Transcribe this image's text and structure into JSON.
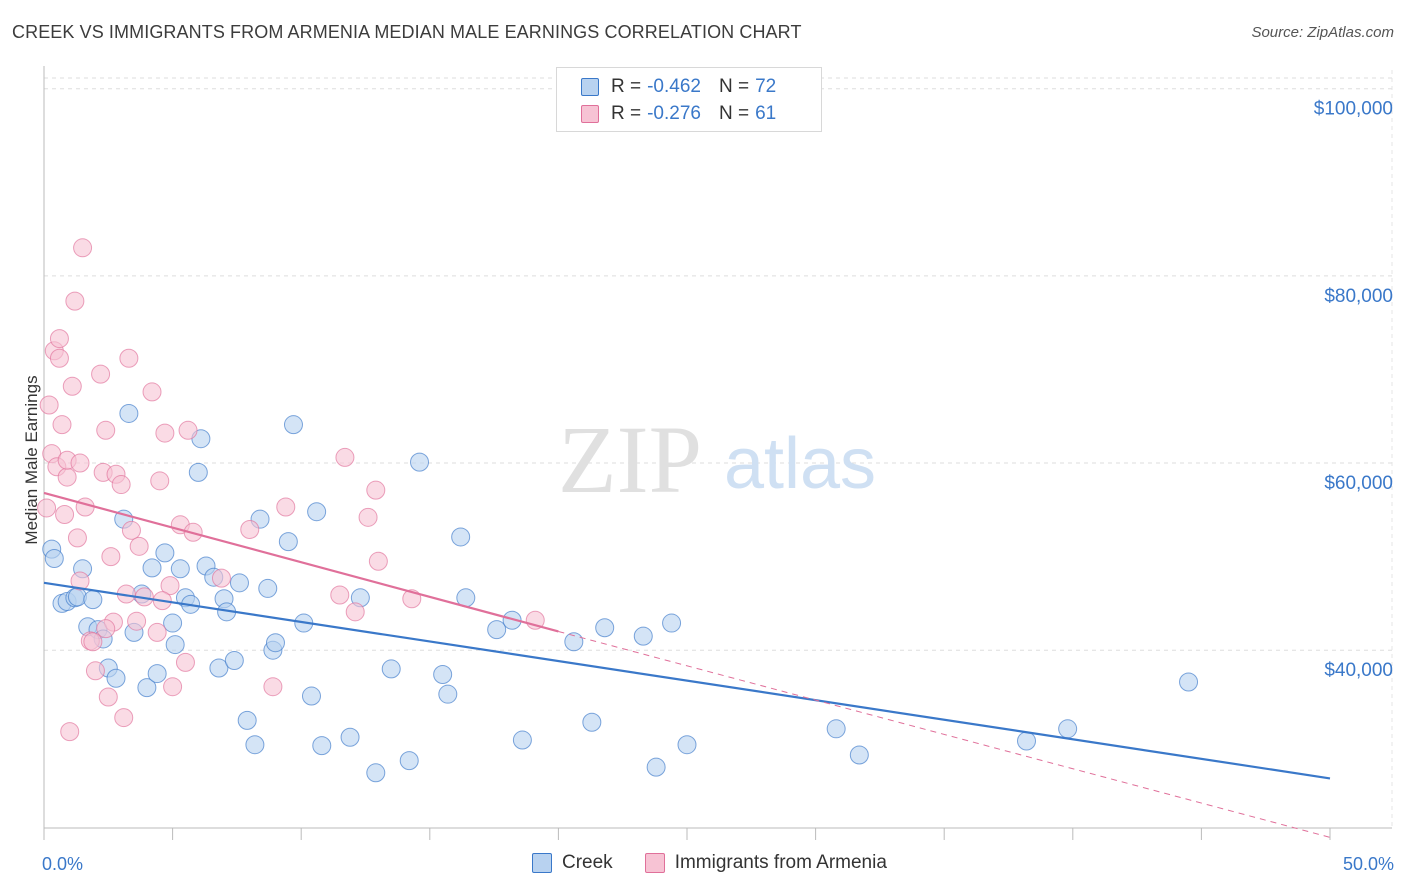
{
  "header": {
    "title": "CREEK VS IMMIGRANTS FROM ARMENIA MEDIAN MALE EARNINGS CORRELATION CHART",
    "source": "Source: ZipAtlas.com"
  },
  "watermark": {
    "zip": "ZIP",
    "atlas": "atlas"
  },
  "legend": {
    "rows": [
      {
        "r_label": "R =",
        "r_value": "-0.462",
        "n_label": "N =",
        "n_value": "72"
      },
      {
        "r_label": "R =",
        "r_value": "-0.276",
        "n_label": "N =",
        "n_value": "61"
      }
    ]
  },
  "colors": {
    "creek": "#3a78c9",
    "creek_fill": "#b8d2f0",
    "armenia": "#e0709a",
    "armenia_fill": "#f7c3d4",
    "axis_text": "#3a78c9",
    "grid": "#dddddd"
  },
  "chart_data": {
    "type": "scatter",
    "ylabel": "Median Male Earnings",
    "x_tick_labels": [
      "0.0%",
      "50.0%"
    ],
    "y_tick_labels": [
      "$40,000",
      "$60,000",
      "$80,000",
      "$100,000"
    ],
    "y_ticks": [
      40000,
      60000,
      80000,
      100000
    ],
    "xlim": [
      0,
      50
    ],
    "ylim": [
      21000,
      102000
    ],
    "series": [
      {
        "name": "Creek",
        "color": "#3a78c9",
        "trend": {
          "x": [
            0,
            50
          ],
          "y": [
            47200,
            26300
          ]
        },
        "points": [
          [
            0.3,
            50800
          ],
          [
            0.4,
            49800
          ],
          [
            0.7,
            45000
          ],
          [
            0.9,
            45200
          ],
          [
            1.2,
            45600
          ],
          [
            1.3,
            45700
          ],
          [
            1.5,
            48700
          ],
          [
            1.7,
            42500
          ],
          [
            1.9,
            45400
          ],
          [
            2.1,
            42200
          ],
          [
            2.3,
            41200
          ],
          [
            2.5,
            38100
          ],
          [
            2.8,
            37000
          ],
          [
            3.1,
            54000
          ],
          [
            3.3,
            65300
          ],
          [
            3.5,
            41900
          ],
          [
            3.8,
            46000
          ],
          [
            4.0,
            36000
          ],
          [
            4.2,
            48800
          ],
          [
            4.4,
            37500
          ],
          [
            4.7,
            50400
          ],
          [
            5.0,
            42900
          ],
          [
            5.1,
            40600
          ],
          [
            5.3,
            48700
          ],
          [
            5.5,
            45600
          ],
          [
            5.7,
            44900
          ],
          [
            6.0,
            59000
          ],
          [
            6.1,
            62600
          ],
          [
            6.3,
            49000
          ],
          [
            6.6,
            47800
          ],
          [
            6.8,
            38100
          ],
          [
            7.0,
            45500
          ],
          [
            7.1,
            44100
          ],
          [
            7.4,
            38900
          ],
          [
            7.6,
            47200
          ],
          [
            7.9,
            32500
          ],
          [
            8.2,
            29900
          ],
          [
            8.4,
            54000
          ],
          [
            8.7,
            46600
          ],
          [
            8.9,
            40000
          ],
          [
            9.0,
            40800
          ],
          [
            9.5,
            51600
          ],
          [
            9.7,
            64100
          ],
          [
            10.1,
            42900
          ],
          [
            10.4,
            35100
          ],
          [
            10.6,
            54800
          ],
          [
            10.8,
            29800
          ],
          [
            11.9,
            30700
          ],
          [
            12.3,
            45600
          ],
          [
            12.9,
            26900
          ],
          [
            13.5,
            38000
          ],
          [
            14.2,
            28200
          ],
          [
            14.6,
            60100
          ],
          [
            15.5,
            37400
          ],
          [
            15.7,
            35300
          ],
          [
            16.2,
            52100
          ],
          [
            16.4,
            45600
          ],
          [
            17.6,
            42200
          ],
          [
            18.2,
            43200
          ],
          [
            18.6,
            30400
          ],
          [
            20.6,
            40900
          ],
          [
            21.3,
            32300
          ],
          [
            21.8,
            42400
          ],
          [
            23.3,
            41500
          ],
          [
            23.8,
            27500
          ],
          [
            24.4,
            42900
          ],
          [
            25.0,
            29900
          ],
          [
            30.8,
            31600
          ],
          [
            31.7,
            28800
          ],
          [
            38.2,
            30300
          ],
          [
            39.8,
            31600
          ],
          [
            44.5,
            36600
          ]
        ]
      },
      {
        "name": "Immigrants from Armenia",
        "color": "#e0709a",
        "trend": {
          "x": [
            0,
            20
          ],
          "y": [
            56800,
            42000
          ]
        },
        "trend_dashed": {
          "x": [
            20,
            50
          ],
          "y": [
            42000,
            20000
          ]
        },
        "points": [
          [
            0.1,
            55200
          ],
          [
            0.2,
            66200
          ],
          [
            0.3,
            61000
          ],
          [
            0.4,
            72000
          ],
          [
            0.5,
            59600
          ],
          [
            0.6,
            73300
          ],
          [
            0.7,
            64100
          ],
          [
            0.8,
            54500
          ],
          [
            0.9,
            58500
          ],
          [
            1.0,
            31300
          ],
          [
            1.1,
            68200
          ],
          [
            1.2,
            77300
          ],
          [
            1.3,
            52000
          ],
          [
            1.4,
            47400
          ],
          [
            1.5,
            83000
          ],
          [
            1.6,
            55300
          ],
          [
            1.8,
            41000
          ],
          [
            2.0,
            37800
          ],
          [
            2.2,
            69500
          ],
          [
            2.3,
            59000
          ],
          [
            2.4,
            63500
          ],
          [
            2.5,
            35000
          ],
          [
            2.6,
            50000
          ],
          [
            2.7,
            43000
          ],
          [
            2.8,
            58800
          ],
          [
            3.0,
            57700
          ],
          [
            3.1,
            32800
          ],
          [
            3.3,
            71200
          ],
          [
            3.4,
            52800
          ],
          [
            3.6,
            43100
          ],
          [
            3.7,
            51100
          ],
          [
            3.9,
            45700
          ],
          [
            4.2,
            67600
          ],
          [
            4.4,
            41900
          ],
          [
            4.5,
            58100
          ],
          [
            4.7,
            63200
          ],
          [
            4.9,
            46900
          ],
          [
            5.0,
            36100
          ],
          [
            5.3,
            53400
          ],
          [
            5.5,
            38700
          ],
          [
            5.6,
            63500
          ],
          [
            5.8,
            52600
          ],
          [
            6.9,
            47700
          ],
          [
            8.0,
            52900
          ],
          [
            8.9,
            36100
          ],
          [
            9.4,
            55300
          ],
          [
            11.5,
            45900
          ],
          [
            11.7,
            60600
          ],
          [
            12.1,
            44100
          ],
          [
            12.6,
            54200
          ],
          [
            12.9,
            57100
          ],
          [
            13.0,
            49500
          ],
          [
            14.3,
            45500
          ],
          [
            19.1,
            43200
          ],
          [
            0.9,
            60300
          ],
          [
            1.4,
            60000
          ],
          [
            2.4,
            42300
          ],
          [
            0.6,
            71200
          ],
          [
            1.9,
            40900
          ],
          [
            3.2,
            46000
          ],
          [
            4.6,
            45300
          ]
        ]
      }
    ]
  }
}
